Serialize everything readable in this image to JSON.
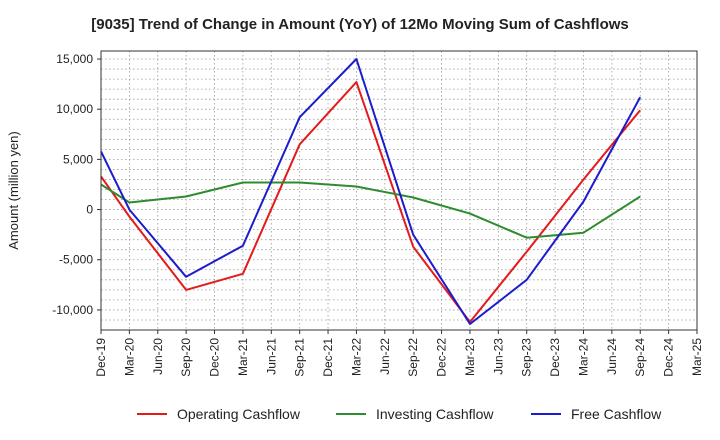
{
  "chart_data": {
    "type": "line",
    "title": "[9035]  Trend of Change in Amount (YoY) of 12Mo Moving Sum of Cashflows",
    "xlabel": "",
    "ylabel": "Amount (million yen)",
    "ylim": [
      -12000,
      15800
    ],
    "yticks": [
      -10000,
      -5000,
      0,
      5000,
      10000,
      15000
    ],
    "ytick_labels": [
      "-10,000",
      "-5,000",
      "0",
      "5,000",
      "10,000",
      "15,000"
    ],
    "categories": [
      "Dec-19",
      "Mar-20",
      "Jun-20",
      "Sep-20",
      "Dec-20",
      "Mar-21",
      "Jun-21",
      "Sep-21",
      "Dec-21",
      "Mar-22",
      "Jun-22",
      "Sep-22",
      "Dec-22",
      "Mar-23",
      "Jun-23",
      "Sep-23",
      "Dec-23",
      "Mar-24",
      "Jun-24",
      "Sep-24",
      "Dec-24",
      "Mar-25"
    ],
    "grid": true,
    "legend_position": "bottom",
    "series": [
      {
        "name": "Operating Cashflow",
        "color": "#e41a1c",
        "values": [
          3300,
          -700,
          null,
          -8000,
          null,
          -6400,
          null,
          6500,
          null,
          12700,
          null,
          -3700,
          null,
          -11200,
          null,
          -4200,
          null,
          3000,
          null,
          9900,
          null,
          null
        ]
      },
      {
        "name": "Investing Cashflow",
        "color": "#2e8b2e",
        "values": [
          2500,
          700,
          null,
          1300,
          null,
          2700,
          null,
          2700,
          null,
          2300,
          null,
          1200,
          null,
          -400,
          null,
          -2800,
          null,
          -2300,
          null,
          1300,
          null,
          null
        ]
      },
      {
        "name": "Free Cashflow",
        "color": "#1c1ccc",
        "values": [
          5800,
          0,
          null,
          -6700,
          null,
          -3600,
          null,
          9200,
          null,
          15000,
          null,
          -2500,
          null,
          -11400,
          null,
          -7000,
          null,
          800,
          null,
          11200,
          null,
          null
        ]
      }
    ]
  }
}
